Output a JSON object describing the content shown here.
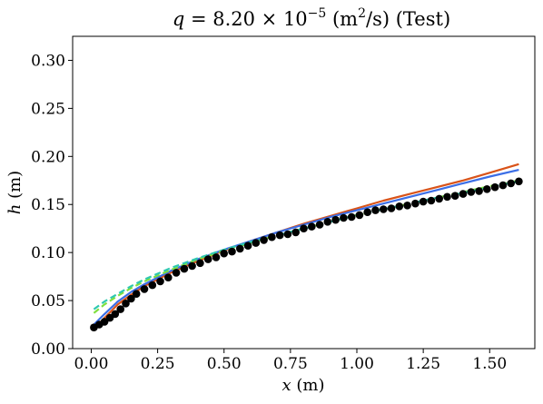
{
  "chart_data": {
    "type": "line",
    "title_var": "q",
    "title_eq": " = 8.20 × 10",
    "title_exp": "−5",
    "title_unit_pre": " (m",
    "title_unit_sup": "2",
    "title_unit_post": "/s) (Test)",
    "xlabel_var": "x",
    "xlabel_unit": " (m)",
    "ylabel_var": "h",
    "ylabel_unit": " (m)",
    "xlim": [
      -0.07,
      1.67
    ],
    "ylim": [
      0.0,
      0.325
    ],
    "xticks": [
      0.0,
      0.25,
      0.5,
      0.75,
      1.0,
      1.25,
      1.5
    ],
    "xtick_labels": [
      "0.00",
      "0.25",
      "0.50",
      "0.75",
      "1.00",
      "1.25",
      "1.50"
    ],
    "yticks": [
      0.0,
      0.05,
      0.1,
      0.15,
      0.2,
      0.25,
      0.3
    ],
    "ytick_labels": [
      "0.00",
      "0.05",
      "0.10",
      "0.15",
      "0.20",
      "0.25",
      "0.30"
    ],
    "grid": false,
    "legend": "none",
    "observed": {
      "color": "#000000",
      "marker": "circle",
      "x": [
        0.01,
        0.03,
        0.05,
        0.07,
        0.09,
        0.11,
        0.13,
        0.15,
        0.17,
        0.2,
        0.23,
        0.26,
        0.29,
        0.32,
        0.35,
        0.38,
        0.41,
        0.44,
        0.47,
        0.5,
        0.53,
        0.56,
        0.59,
        0.62,
        0.65,
        0.68,
        0.71,
        0.74,
        0.77,
        0.8,
        0.83,
        0.86,
        0.89,
        0.92,
        0.95,
        0.98,
        1.01,
        1.04,
        1.07,
        1.1,
        1.13,
        1.16,
        1.19,
        1.22,
        1.25,
        1.28,
        1.31,
        1.34,
        1.37,
        1.4,
        1.43,
        1.46,
        1.49,
        1.52,
        1.55,
        1.58,
        1.61
      ],
      "y": [
        0.022,
        0.025,
        0.028,
        0.032,
        0.036,
        0.041,
        0.047,
        0.052,
        0.057,
        0.062,
        0.066,
        0.07,
        0.074,
        0.079,
        0.083,
        0.086,
        0.089,
        0.093,
        0.095,
        0.099,
        0.101,
        0.104,
        0.107,
        0.11,
        0.113,
        0.116,
        0.118,
        0.119,
        0.121,
        0.125,
        0.127,
        0.129,
        0.132,
        0.134,
        0.136,
        0.137,
        0.139,
        0.142,
        0.144,
        0.145,
        0.146,
        0.148,
        0.149,
        0.151,
        0.153,
        0.154,
        0.156,
        0.158,
        0.159,
        0.161,
        0.163,
        0.164,
        0.166,
        0.168,
        0.17,
        0.172,
        0.174
      ]
    },
    "series": [
      {
        "color": "#d95319",
        "dash": "solid",
        "x": [
          0.01,
          0.05,
          0.1,
          0.15,
          0.2,
          0.3,
          0.4,
          0.5,
          0.6,
          0.7,
          0.8,
          0.9,
          1.0,
          1.1,
          1.2,
          1.3,
          1.4,
          1.5,
          1.61
        ],
        "y": [
          0.02,
          0.032,
          0.046,
          0.056,
          0.065,
          0.079,
          0.091,
          0.102,
          0.112,
          0.121,
          0.13,
          0.138,
          0.146,
          0.154,
          0.161,
          0.168,
          0.175,
          0.183,
          0.192
        ]
      },
      {
        "color": "#3b6ee6",
        "dash": "solid",
        "x": [
          0.01,
          0.05,
          0.1,
          0.15,
          0.2,
          0.3,
          0.4,
          0.5,
          0.6,
          0.7,
          0.8,
          0.9,
          1.0,
          1.1,
          1.2,
          1.3,
          1.4,
          1.5,
          1.61
        ],
        "y": [
          0.025,
          0.036,
          0.049,
          0.059,
          0.067,
          0.081,
          0.093,
          0.103,
          0.112,
          0.121,
          0.129,
          0.137,
          0.144,
          0.151,
          0.158,
          0.165,
          0.172,
          0.179,
          0.186
        ]
      },
      {
        "color": "#7fdf3e",
        "dash": "dashed",
        "x": [
          0.01,
          0.05,
          0.1,
          0.15,
          0.2,
          0.3,
          0.4,
          0.5,
          0.6,
          0.7,
          0.8,
          0.9,
          1.0,
          1.1,
          1.2,
          1.3,
          1.4,
          1.5,
          1.61
        ],
        "y": [
          0.037,
          0.046,
          0.055,
          0.063,
          0.07,
          0.082,
          0.093,
          0.102,
          0.11,
          0.118,
          0.125,
          0.132,
          0.139,
          0.145,
          0.151,
          0.157,
          0.163,
          0.169,
          0.175
        ]
      },
      {
        "color": "#2ec8b0",
        "dash": "dashed",
        "x": [
          0.01,
          0.05,
          0.1,
          0.15,
          0.2,
          0.3,
          0.4,
          0.5,
          0.6,
          0.7,
          0.8,
          0.9,
          1.0,
          1.1,
          1.2,
          1.3,
          1.4,
          1.5,
          1.61
        ],
        "y": [
          0.041,
          0.049,
          0.057,
          0.065,
          0.072,
          0.084,
          0.094,
          0.103,
          0.111,
          0.118,
          0.125,
          0.132,
          0.139,
          0.145,
          0.151,
          0.157,
          0.162,
          0.168,
          0.174
        ]
      }
    ]
  }
}
